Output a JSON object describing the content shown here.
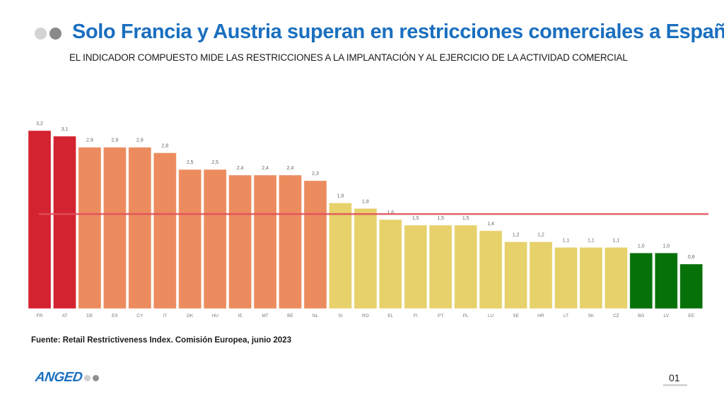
{
  "header": {
    "title": "Solo Francia y Austria superan en restricciones comerciales a España",
    "subtitle": "EL INDICADOR COMPUESTO MIDE LAS RESTRICCIONES A LA IMPLANTACIÓN Y AL EJERCICIO DE LA ACTIVIDAD COMERCIAL"
  },
  "chart_data": {
    "type": "bar",
    "title": "",
    "xlabel": "",
    "ylabel": "",
    "ylim": [
      0,
      3.2
    ],
    "grid": false,
    "legend": "none",
    "categories": [
      "FR",
      "AT",
      "DE",
      "ES",
      "CY",
      "IT",
      "DK",
      "HU",
      "IE",
      "MT",
      "BE",
      "NL",
      "SI",
      "RO",
      "EL",
      "FI",
      "PT",
      "PL",
      "LU",
      "SE",
      "HR",
      "LT",
      "SK",
      "CZ",
      "BG",
      "LV",
      "EE"
    ],
    "values": [
      3.2,
      3.1,
      2.9,
      2.9,
      2.9,
      2.8,
      2.5,
      2.5,
      2.4,
      2.4,
      2.4,
      2.3,
      1.9,
      1.8,
      1.6,
      1.5,
      1.5,
      1.5,
      1.4,
      1.2,
      1.2,
      1.1,
      1.1,
      1.1,
      1.0,
      1.0,
      0.8
    ],
    "value_labels": [
      "3,2",
      "3,1",
      "2,9",
      "2,9",
      "2,9",
      "2,8",
      "2,5",
      "2,5",
      "2,4",
      "2,4",
      "2,4",
      "2,3",
      "1,9",
      "1,8",
      "1,6",
      "1,5",
      "1,5",
      "1,5",
      "1,4",
      "1,2",
      "1,2",
      "1,1",
      "1,1",
      "1,1",
      "1,0",
      "1,0",
      "0,8"
    ],
    "bar_groups": [
      "high",
      "high",
      "upper",
      "upper",
      "upper",
      "upper",
      "upper",
      "upper",
      "upper",
      "upper",
      "upper",
      "upper",
      "mid",
      "mid",
      "mid",
      "mid",
      "mid",
      "mid",
      "mid",
      "mid",
      "mid",
      "mid",
      "mid",
      "mid",
      "low",
      "low",
      "low"
    ],
    "group_colors": {
      "high": "#d42330",
      "upper": "#ec8b5e",
      "mid": "#e7d16b",
      "low": "#077109"
    },
    "reference_line": {
      "value": 1.7,
      "color": "#e0505c",
      "label": ""
    }
  },
  "footer": {
    "source": "Fuente: Retail Restrictiveness Index. Comisión Europea, junio 2023",
    "logo": "ANGED",
    "page_number": "01"
  }
}
